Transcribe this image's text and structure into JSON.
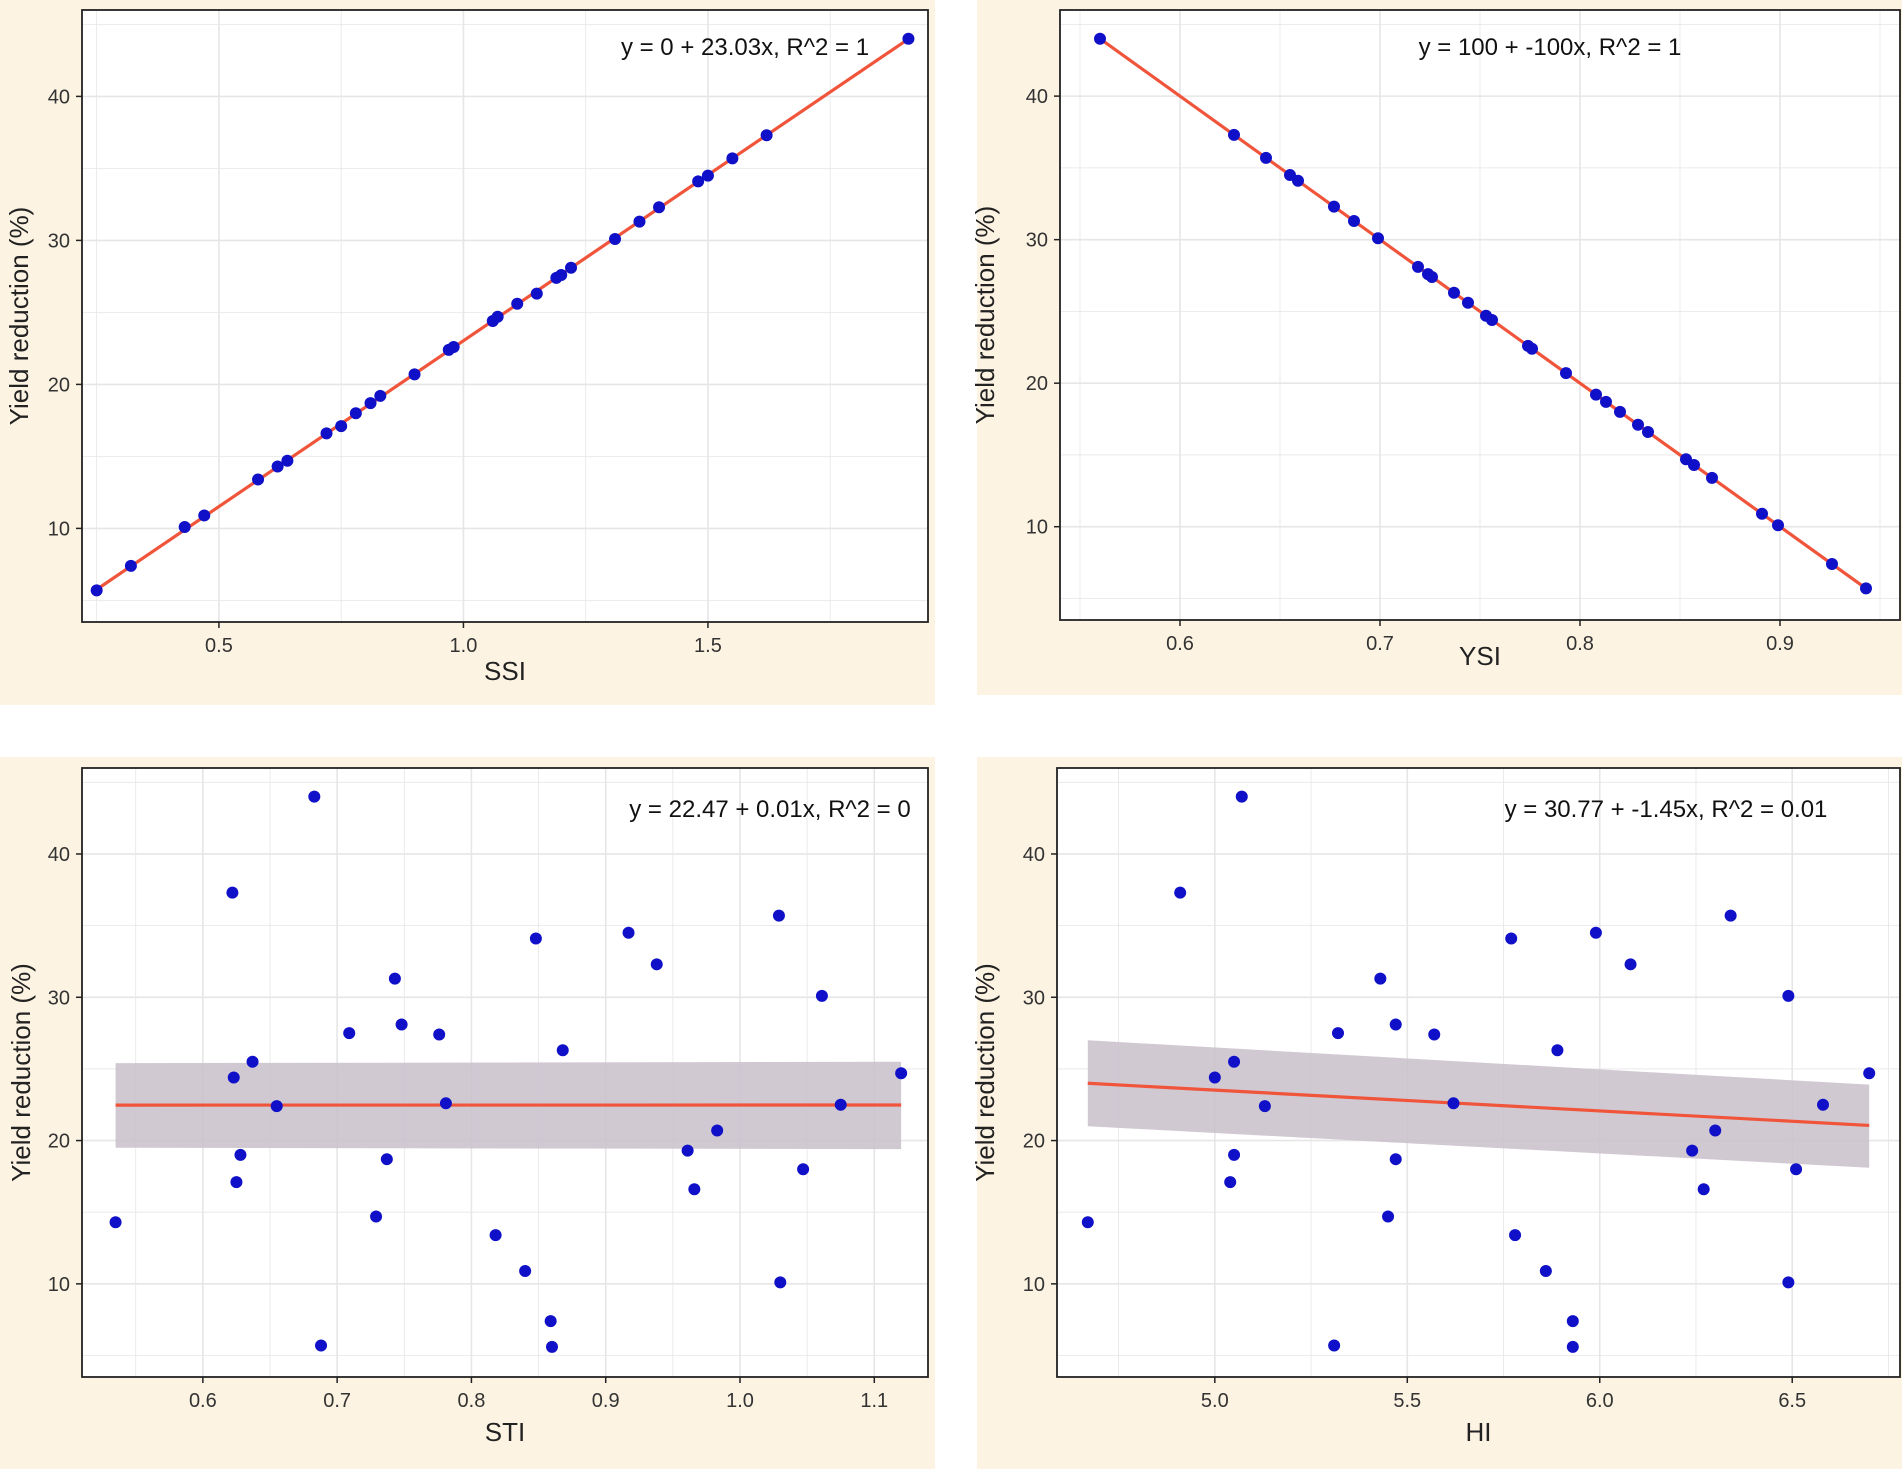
{
  "colors": {
    "panel_background": "#fdf3e3",
    "plot_background": "#ffffff",
    "grid": "#e6e6e6",
    "axis_frame": "#222222",
    "points": "#1010c8",
    "fit_line": "#f0553b",
    "confidence_band": "#c9bfca",
    "text": "#222222"
  },
  "chart_data": [
    {
      "type": "scatter",
      "panel": "top-left",
      "xlabel": "SSI",
      "ylabel": "Yield reduction (%)",
      "annotation": "y = 0 + 23.03x, R^2 = 1",
      "xlim": [
        0.22,
        1.95
      ],
      "ylim": [
        3.5,
        46
      ],
      "xticks": [
        0.5,
        1.0,
        1.5
      ],
      "xtick_labels": [
        "0.5",
        "1.0",
        "1.5"
      ],
      "yticks": [
        10,
        20,
        30,
        40
      ],
      "ytick_labels": [
        "10",
        "20",
        "30",
        "40"
      ],
      "points": [
        [
          0.25,
          5.7
        ],
        [
          0.32,
          7.4
        ],
        [
          0.43,
          10.1
        ],
        [
          0.47,
          10.9
        ],
        [
          0.58,
          13.4
        ],
        [
          0.62,
          14.3
        ],
        [
          0.64,
          14.7
        ],
        [
          0.72,
          16.6
        ],
        [
          0.75,
          17.1
        ],
        [
          0.78,
          18.0
        ],
        [
          0.81,
          18.7
        ],
        [
          0.83,
          19.2
        ],
        [
          0.9,
          20.7
        ],
        [
          0.97,
          22.4
        ],
        [
          0.98,
          22.6
        ],
        [
          1.06,
          24.4
        ],
        [
          1.07,
          24.7
        ],
        [
          1.11,
          25.6
        ],
        [
          1.15,
          26.3
        ],
        [
          1.19,
          27.4
        ],
        [
          1.2,
          27.6
        ],
        [
          1.22,
          28.1
        ],
        [
          1.31,
          30.1
        ],
        [
          1.36,
          31.3
        ],
        [
          1.4,
          32.3
        ],
        [
          1.48,
          34.1
        ],
        [
          1.5,
          34.5
        ],
        [
          1.55,
          35.7
        ],
        [
          1.62,
          37.3
        ],
        [
          1.91,
          44.0
        ]
      ],
      "fit": {
        "intercept": 0,
        "slope": 23.03
      },
      "band": null
    },
    {
      "type": "scatter",
      "panel": "top-right",
      "xlabel": "YSI",
      "ylabel": "Yield reduction (%)",
      "annotation": "y = 100 + -100x, R^2 = 1",
      "xlim": [
        0.54,
        0.96
      ],
      "ylim": [
        3.5,
        46
      ],
      "xticks": [
        0.6,
        0.7,
        0.8,
        0.9
      ],
      "xtick_labels": [
        "0.6",
        "0.7",
        "0.8",
        "0.9"
      ],
      "yticks": [
        10,
        20,
        30,
        40
      ],
      "ytick_labels": [
        "10",
        "20",
        "30",
        "40"
      ],
      "points": [
        [
          0.56,
          44.0
        ],
        [
          0.627,
          37.3
        ],
        [
          0.643,
          35.7
        ],
        [
          0.655,
          34.5
        ],
        [
          0.659,
          34.1
        ],
        [
          0.677,
          32.3
        ],
        [
          0.687,
          31.3
        ],
        [
          0.699,
          30.1
        ],
        [
          0.719,
          28.1
        ],
        [
          0.724,
          27.6
        ],
        [
          0.726,
          27.4
        ],
        [
          0.737,
          26.3
        ],
        [
          0.744,
          25.6
        ],
        [
          0.753,
          24.7
        ],
        [
          0.756,
          24.4
        ],
        [
          0.774,
          22.6
        ],
        [
          0.776,
          22.4
        ],
        [
          0.793,
          20.7
        ],
        [
          0.808,
          19.2
        ],
        [
          0.813,
          18.7
        ],
        [
          0.82,
          18.0
        ],
        [
          0.829,
          17.1
        ],
        [
          0.834,
          16.6
        ],
        [
          0.853,
          14.7
        ],
        [
          0.857,
          14.3
        ],
        [
          0.866,
          13.4
        ],
        [
          0.891,
          10.9
        ],
        [
          0.899,
          10.1
        ],
        [
          0.926,
          7.4
        ],
        [
          0.943,
          5.7
        ]
      ],
      "fit": {
        "intercept": 100,
        "slope": -100
      },
      "band": null
    },
    {
      "type": "scatter",
      "panel": "bottom-left",
      "xlabel": "STI",
      "ylabel": "Yield reduction (%)",
      "annotation": "y = 22.47 + 0.01x, R^2 = 0",
      "xlim": [
        0.51,
        1.14
      ],
      "ylim": [
        3.5,
        46
      ],
      "xticks": [
        0.6,
        0.7,
        0.8,
        0.9,
        1.0,
        1.1
      ],
      "xtick_labels": [
        "0.6",
        "0.7",
        "0.8",
        "0.9",
        "1.0",
        "1.1"
      ],
      "yticks": [
        10,
        20,
        30,
        40
      ],
      "ytick_labels": [
        "10",
        "20",
        "30",
        "40"
      ],
      "points": [
        [
          0.535,
          14.3
        ],
        [
          0.622,
          37.3
        ],
        [
          0.623,
          24.4
        ],
        [
          0.625,
          17.1
        ],
        [
          0.628,
          19.0
        ],
        [
          0.637,
          25.5
        ],
        [
          0.655,
          22.4
        ],
        [
          0.683,
          44.0
        ],
        [
          0.688,
          5.7
        ],
        [
          0.709,
          27.5
        ],
        [
          0.729,
          14.7
        ],
        [
          0.737,
          18.7
        ],
        [
          0.743,
          31.3
        ],
        [
          0.748,
          28.1
        ],
        [
          0.776,
          27.4
        ],
        [
          0.781,
          22.6
        ],
        [
          0.818,
          13.4
        ],
        [
          0.84,
          10.9
        ],
        [
          0.848,
          34.1
        ],
        [
          0.859,
          7.4
        ],
        [
          0.86,
          5.6
        ],
        [
          0.868,
          26.3
        ],
        [
          0.917,
          34.5
        ],
        [
          0.938,
          32.3
        ],
        [
          0.961,
          19.3
        ],
        [
          0.966,
          16.6
        ],
        [
          0.983,
          20.7
        ],
        [
          1.029,
          35.7
        ],
        [
          1.03,
          10.1
        ],
        [
          1.047,
          18.0
        ],
        [
          1.061,
          30.1
        ],
        [
          1.075,
          22.5
        ],
        [
          1.12,
          24.7
        ]
      ],
      "fit": {
        "intercept": 22.47,
        "slope": 0.01
      },
      "band": {
        "x": [
          0.535,
          1.12
        ],
        "lower": [
          19.5,
          19.4
        ],
        "upper": [
          25.4,
          25.5
        ]
      }
    },
    {
      "type": "scatter",
      "panel": "bottom-right",
      "xlabel": "HI",
      "ylabel": "Yield reduction (%)",
      "annotation": "y = 30.77 + -1.45x, R^2 = 0.01",
      "xlim": [
        4.59,
        6.78
      ],
      "ylim": [
        3.5,
        46
      ],
      "xticks": [
        5.0,
        5.5,
        6.0,
        6.5
      ],
      "xtick_labels": [
        "5.0",
        "5.5",
        "6.0",
        "6.5"
      ],
      "yticks": [
        10,
        20,
        30,
        40
      ],
      "ytick_labels": [
        "10",
        "20",
        "30",
        "40"
      ],
      "points": [
        [
          4.67,
          14.3
        ],
        [
          4.91,
          37.3
        ],
        [
          5.0,
          24.4
        ],
        [
          5.04,
          17.1
        ],
        [
          5.05,
          19.0
        ],
        [
          5.05,
          25.5
        ],
        [
          5.07,
          44.0
        ],
        [
          5.13,
          22.4
        ],
        [
          5.31,
          5.7
        ],
        [
          5.32,
          27.5
        ],
        [
          5.43,
          31.3
        ],
        [
          5.45,
          14.7
        ],
        [
          5.47,
          28.1
        ],
        [
          5.47,
          18.7
        ],
        [
          5.57,
          27.4
        ],
        [
          5.62,
          22.6
        ],
        [
          5.77,
          34.1
        ],
        [
          5.78,
          13.4
        ],
        [
          5.86,
          10.9
        ],
        [
          5.89,
          26.3
        ],
        [
          5.93,
          7.4
        ],
        [
          5.93,
          5.6
        ],
        [
          5.99,
          34.5
        ],
        [
          6.08,
          32.3
        ],
        [
          6.24,
          19.3
        ],
        [
          6.27,
          16.6
        ],
        [
          6.3,
          20.7
        ],
        [
          6.34,
          35.7
        ],
        [
          6.49,
          30.1
        ],
        [
          6.49,
          10.1
        ],
        [
          6.51,
          18.0
        ],
        [
          6.58,
          22.5
        ],
        [
          6.7,
          24.7
        ]
      ],
      "fit": {
        "intercept": 30.77,
        "slope": -1.45
      },
      "band": {
        "x": [
          4.67,
          6.7
        ],
        "lower": [
          21.0,
          18.1
        ],
        "upper": [
          27.0,
          23.9
        ]
      }
    }
  ]
}
